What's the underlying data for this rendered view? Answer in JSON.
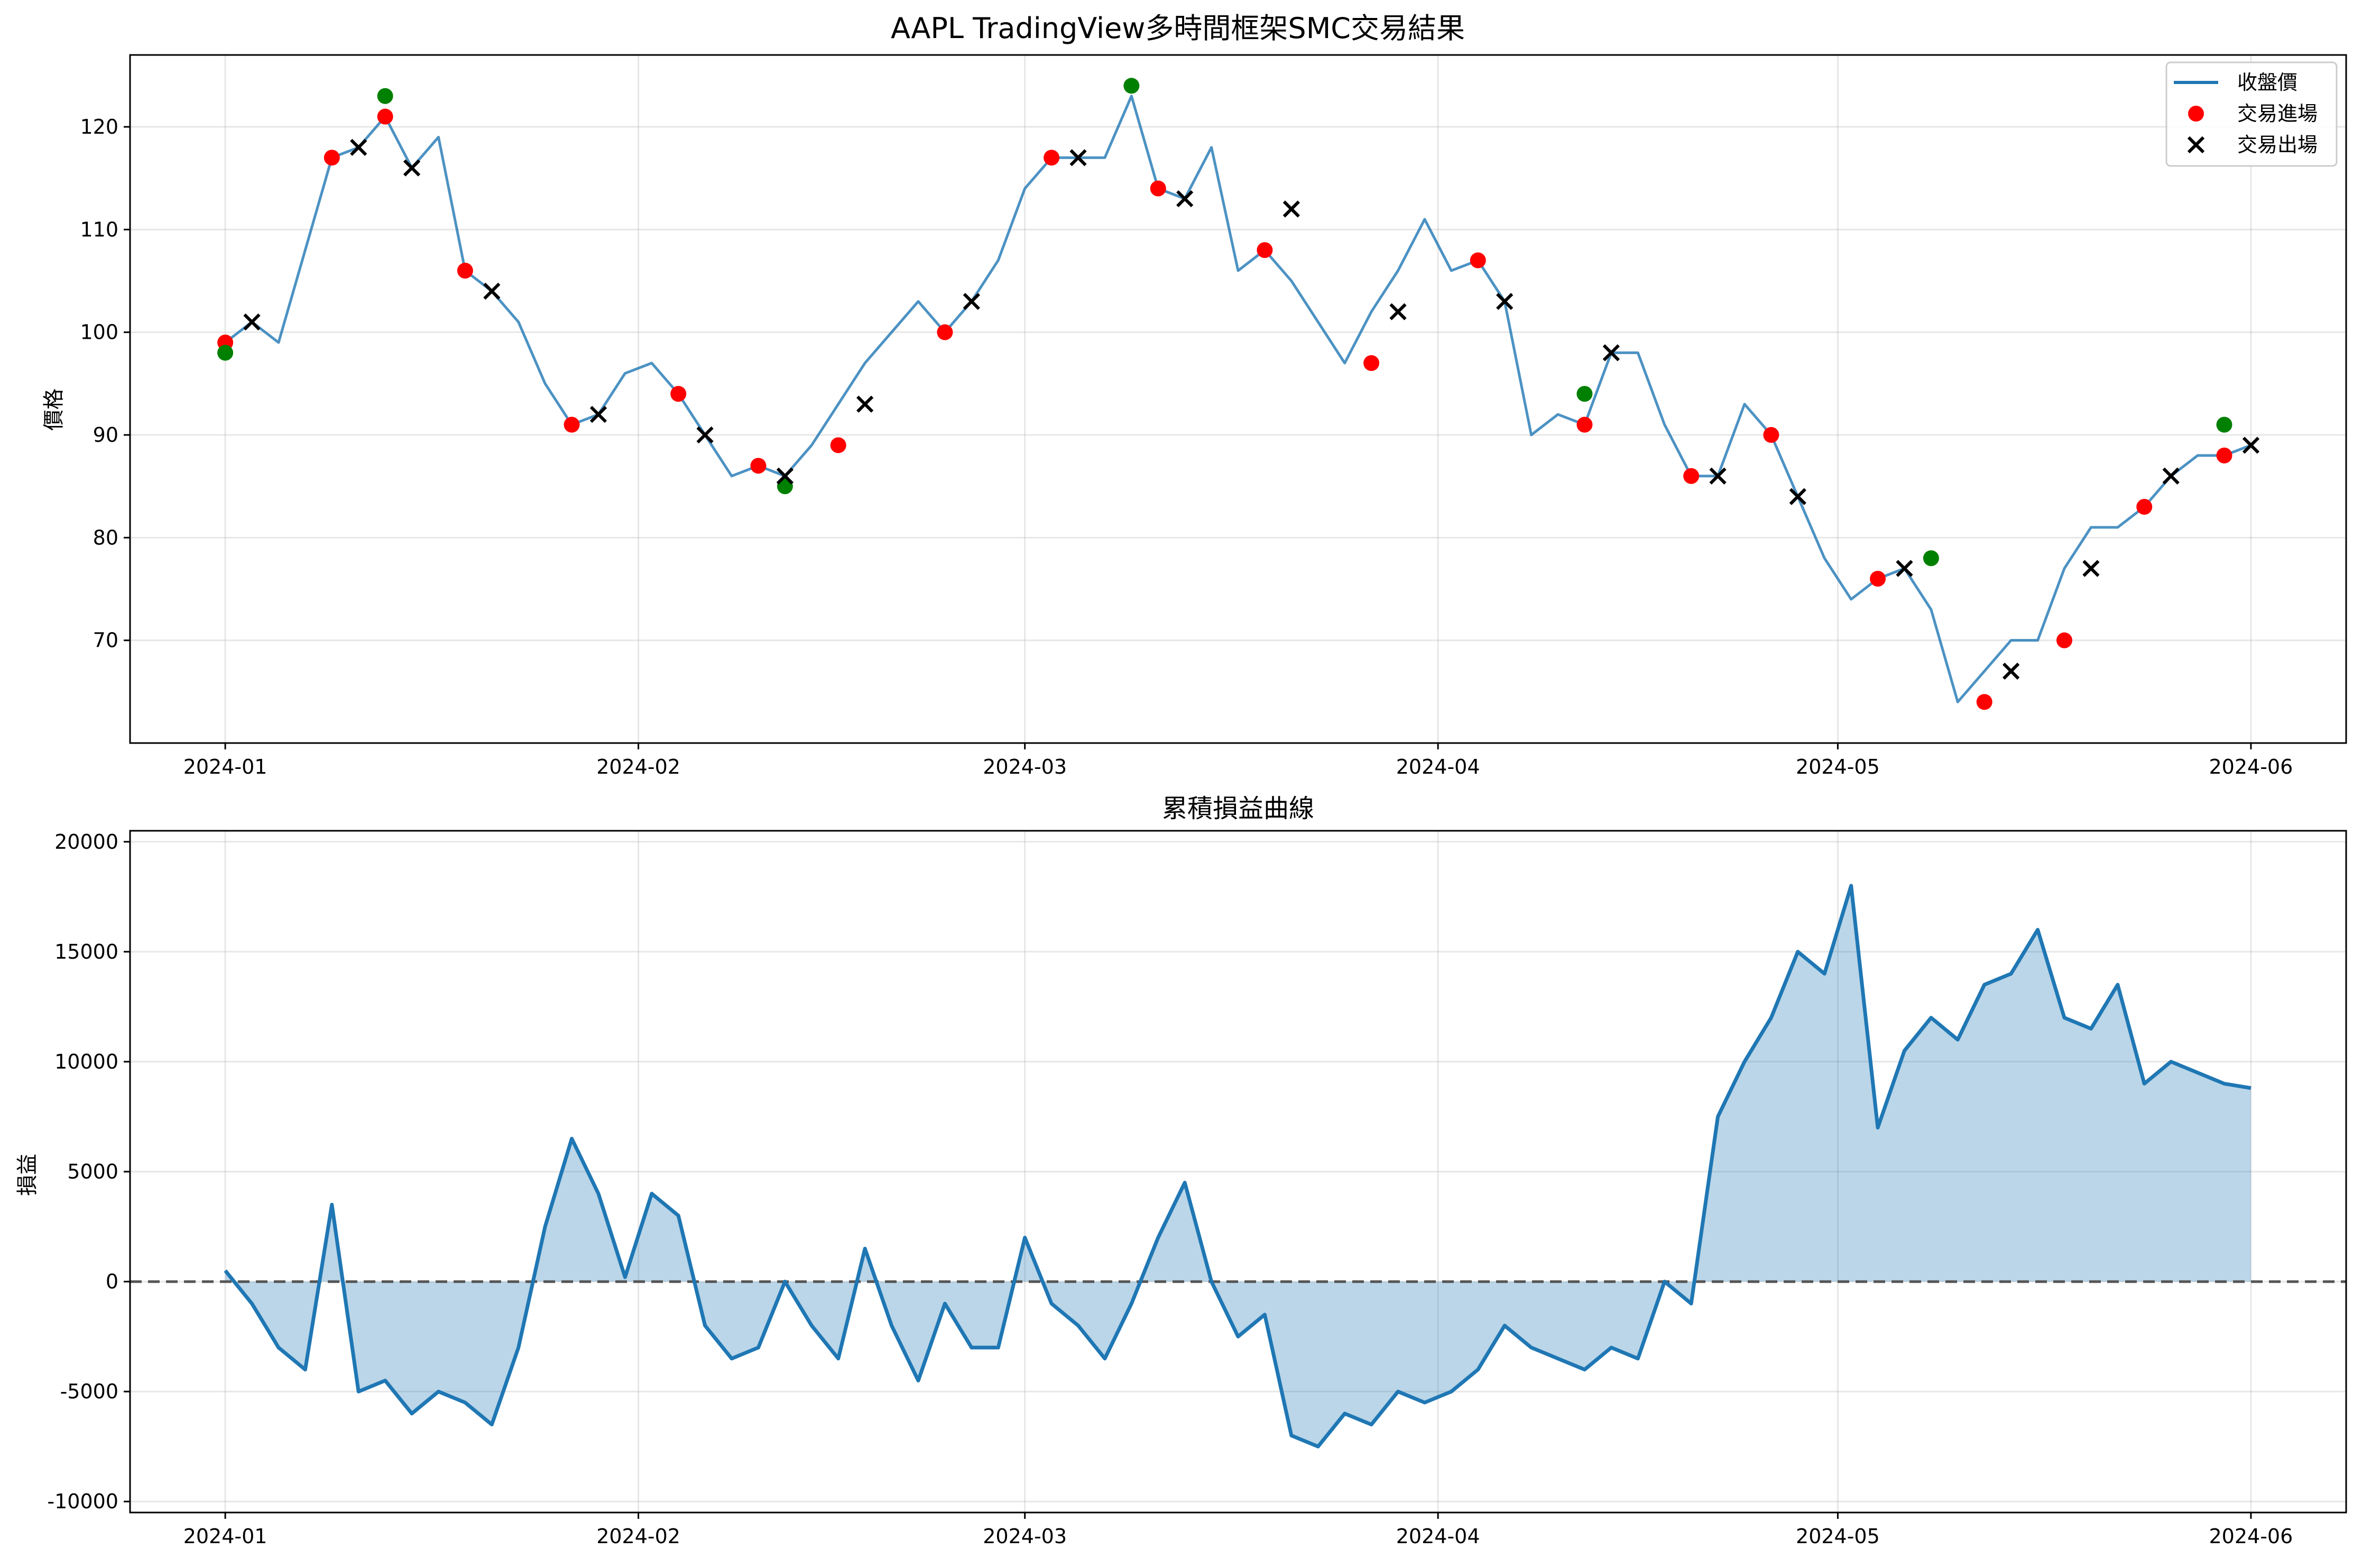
{
  "chart_data": [
    {
      "type": "line",
      "title": "AAPL TradingView多時間框架SMC交易結果",
      "xlabel": "",
      "ylabel": "價格",
      "x_start": "2024-01-01",
      "x_end": "2024-06-01",
      "x_ticks": [
        "2024-01",
        "2024-02",
        "2024-03",
        "2024-04",
        "2024-05",
        "2024-06"
      ],
      "y_ticks": [
        70,
        80,
        90,
        100,
        110,
        120
      ],
      "ylim": [
        60,
        127
      ],
      "grid": true,
      "legend_position": "top-right",
      "series": [
        {
          "name": "收盤價",
          "color": "#1f77b4",
          "x": [
            "2024-01-01",
            "2024-01-03",
            "2024-01-05",
            "2024-01-07",
            "2024-01-09",
            "2024-01-11",
            "2024-01-13",
            "2024-01-15",
            "2024-01-17",
            "2024-01-19",
            "2024-01-21",
            "2024-01-23",
            "2024-01-25",
            "2024-01-27",
            "2024-01-29",
            "2024-01-31",
            "2024-02-02",
            "2024-02-04",
            "2024-02-06",
            "2024-02-08",
            "2024-02-10",
            "2024-02-12",
            "2024-02-14",
            "2024-02-16",
            "2024-02-18",
            "2024-02-20",
            "2024-02-22",
            "2024-02-24",
            "2024-02-26",
            "2024-02-28",
            "2024-03-01",
            "2024-03-03",
            "2024-03-05",
            "2024-03-07",
            "2024-03-09",
            "2024-03-11",
            "2024-03-13",
            "2024-03-15",
            "2024-03-17",
            "2024-03-19",
            "2024-03-21",
            "2024-03-23",
            "2024-03-25",
            "2024-03-27",
            "2024-03-29",
            "2024-03-31",
            "2024-04-02",
            "2024-04-04",
            "2024-04-06",
            "2024-04-08",
            "2024-04-10",
            "2024-04-12",
            "2024-04-14",
            "2024-04-16",
            "2024-04-18",
            "2024-04-20",
            "2024-04-22",
            "2024-04-24",
            "2024-04-26",
            "2024-04-28",
            "2024-04-30",
            "2024-05-02",
            "2024-05-04",
            "2024-05-06",
            "2024-05-08",
            "2024-05-10",
            "2024-05-12",
            "2024-05-14",
            "2024-05-16",
            "2024-05-18",
            "2024-05-20",
            "2024-05-22",
            "2024-05-24",
            "2024-05-26",
            "2024-05-28",
            "2024-05-30",
            "2024-06-01"
          ],
          "values": [
            99,
            101,
            99,
            108,
            117,
            118,
            121,
            116,
            119,
            106,
            104,
            101,
            95,
            91,
            92,
            96,
            97,
            94,
            90,
            86,
            87,
            86,
            89,
            93,
            97,
            100,
            103,
            100,
            103,
            107,
            114,
            117,
            117,
            117,
            123,
            114,
            113,
            118,
            106,
            108,
            105,
            101,
            97,
            102,
            106,
            111,
            106,
            107,
            103,
            90,
            92,
            91,
            98,
            98,
            91,
            86,
            86,
            93,
            90,
            84,
            78,
            74,
            76,
            77,
            73,
            64,
            67,
            70,
            70,
            77,
            81,
            81,
            83,
            86,
            88,
            88,
            89
          ]
        }
      ],
      "entries": {
        "name": "交易進場",
        "color": "#ff0000",
        "x": [
          "2024-01-01",
          "2024-01-09",
          "2024-01-13",
          "2024-01-19",
          "2024-01-27",
          "2024-02-04",
          "2024-02-10",
          "2024-02-16",
          "2024-02-24",
          "2024-03-03",
          "2024-03-11",
          "2024-03-19",
          "2024-03-27",
          "2024-04-04",
          "2024-04-12",
          "2024-04-20",
          "2024-04-26",
          "2024-05-04",
          "2024-05-12",
          "2024-05-18",
          "2024-05-24",
          "2024-05-30"
        ],
        "values": [
          99,
          117,
          121,
          106,
          91,
          94,
          87,
          89,
          100,
          117,
          114,
          108,
          97,
          107,
          91,
          86,
          90,
          76,
          64,
          70,
          83,
          88
        ]
      },
      "exits": {
        "name": "交易出場",
        "color": "#000000",
        "x": [
          "2024-01-03",
          "2024-01-11",
          "2024-01-15",
          "2024-01-21",
          "2024-01-29",
          "2024-02-06",
          "2024-02-12",
          "2024-02-18",
          "2024-02-26",
          "2024-03-05",
          "2024-03-13",
          "2024-03-21",
          "2024-03-29",
          "2024-04-06",
          "2024-04-14",
          "2024-04-22",
          "2024-04-28",
          "2024-05-06",
          "2024-05-14",
          "2024-05-20",
          "2024-05-26",
          "2024-06-01"
        ],
        "values": [
          101,
          118,
          116,
          104,
          92,
          90,
          86,
          93,
          103,
          117,
          113,
          112,
          102,
          103,
          98,
          86,
          84,
          77,
          67,
          77,
          86,
          89
        ]
      },
      "wins": {
        "color": "#008000",
        "x": [
          "2024-01-01",
          "2024-01-13",
          "2024-02-12",
          "2024-03-09",
          "2024-04-12",
          "2024-05-08",
          "2024-05-30"
        ],
        "values": [
          98,
          123,
          85,
          124,
          94,
          78,
          91
        ]
      }
    },
    {
      "type": "area",
      "title": "累積損益曲線",
      "xlabel": "",
      "ylabel": "損益",
      "x_start": "2024-01-01",
      "x_end": "2024-06-01",
      "x_ticks": [
        "2024-01",
        "2024-02",
        "2024-03",
        "2024-04",
        "2024-05",
        "2024-06"
      ],
      "y_ticks": [
        -10000,
        -5000,
        0,
        5000,
        10000,
        15000,
        20000
      ],
      "y_tick_labels": [
        "-10000",
        "-5000",
        "0",
        "5000",
        "10000",
        "15000",
        "20000"
      ],
      "ylim": [
        -10500,
        20500
      ],
      "grid": true,
      "baseline": 0,
      "series": [
        {
          "name": "",
          "color": "#1f77b4",
          "fill_color": "#1f77b4",
          "x": [
            "2024-01-01",
            "2024-01-03",
            "2024-01-05",
            "2024-01-07",
            "2024-01-09",
            "2024-01-11",
            "2024-01-13",
            "2024-01-15",
            "2024-01-17",
            "2024-01-19",
            "2024-01-21",
            "2024-01-23",
            "2024-01-25",
            "2024-01-27",
            "2024-01-29",
            "2024-01-31",
            "2024-02-02",
            "2024-02-04",
            "2024-02-06",
            "2024-02-08",
            "2024-02-10",
            "2024-02-12",
            "2024-02-14",
            "2024-02-16",
            "2024-02-18",
            "2024-02-20",
            "2024-02-22",
            "2024-02-24",
            "2024-02-26",
            "2024-02-28",
            "2024-03-01",
            "2024-03-03",
            "2024-03-05",
            "2024-03-07",
            "2024-03-09",
            "2024-03-11",
            "2024-03-13",
            "2024-03-15",
            "2024-03-17",
            "2024-03-19",
            "2024-03-21",
            "2024-03-23",
            "2024-03-25",
            "2024-03-27",
            "2024-03-29",
            "2024-03-31",
            "2024-04-02",
            "2024-04-04",
            "2024-04-06",
            "2024-04-08",
            "2024-04-10",
            "2024-04-12",
            "2024-04-14",
            "2024-04-16",
            "2024-04-18",
            "2024-04-20",
            "2024-04-22",
            "2024-04-24",
            "2024-04-26",
            "2024-04-28",
            "2024-04-30",
            "2024-05-02",
            "2024-05-04",
            "2024-05-06",
            "2024-05-08",
            "2024-05-10",
            "2024-05-12",
            "2024-05-14",
            "2024-05-16",
            "2024-05-18",
            "2024-05-20",
            "2024-05-22",
            "2024-05-24",
            "2024-05-26",
            "2024-05-28",
            "2024-05-30",
            "2024-06-01"
          ],
          "values": [
            500,
            -1000,
            -3000,
            -4000,
            3500,
            -5000,
            -4500,
            -6000,
            -5000,
            -5500,
            -6500,
            -3000,
            2500,
            6500,
            4000,
            200,
            4000,
            3000,
            -2000,
            -3500,
            -3000,
            0,
            -2000,
            -3500,
            1500,
            -2000,
            -4500,
            -1000,
            -3000,
            -3000,
            2000,
            -1000,
            -2000,
            -3500,
            -1000,
            2000,
            4500,
            0,
            -2500,
            -1500,
            -7000,
            -7500,
            -6000,
            -6500,
            -5000,
            -5500,
            -5000,
            -4000,
            -2000,
            -3000,
            -3500,
            -4000,
            -3000,
            -3500,
            0,
            -1000,
            7500,
            10000,
            12000,
            15000,
            14000,
            18000,
            7000,
            10500,
            12000,
            11000,
            13500,
            14000,
            16000,
            12000,
            11500,
            13500,
            9000,
            10000,
            9500,
            9000,
            8800
          ]
        }
      ]
    }
  ]
}
